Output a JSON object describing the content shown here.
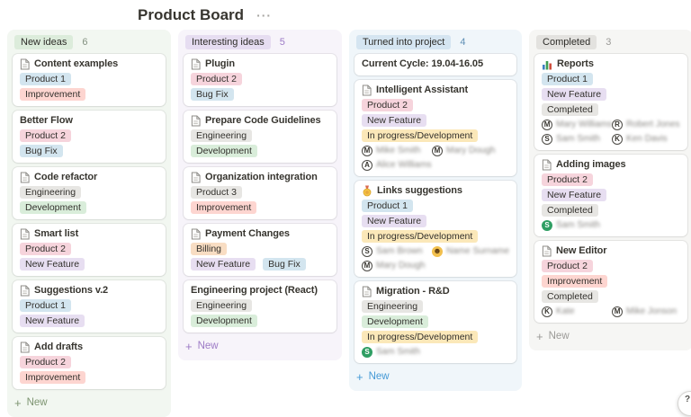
{
  "page": {
    "title": "Product Board",
    "menu_icon": "···",
    "help_icon": "?"
  },
  "tag_palette": {
    "blue": "#d3e5ef",
    "pink": "#f6d4dc",
    "red": "#fdd5d0",
    "gray": "#e7e6e3",
    "green": "#d9edda",
    "purple": "#e7def1",
    "yellow": "#fbe8b9",
    "orange": "#f8ddc3"
  },
  "columns": [
    {
      "id": "new-ideas",
      "label": "New ideas",
      "count": "6",
      "column_bg": "#f2f7f1",
      "pill_bg": "#dcecdb",
      "count_color": "#839180",
      "accent_color": "#7d9471",
      "new_label": "New",
      "cards": [
        {
          "icon": "doc",
          "title": "Content examples",
          "rows": [
            [
              {
                "type": "tag",
                "label": "Product 1",
                "color": "blue"
              }
            ],
            [
              {
                "type": "tag",
                "label": "Improvement",
                "color": "red"
              }
            ]
          ]
        },
        {
          "icon": null,
          "title": "Better Flow",
          "rows": [
            [
              {
                "type": "tag",
                "label": "Product 2",
                "color": "pink"
              }
            ],
            [
              {
                "type": "tag",
                "label": "Bug Fix",
                "color": "blue"
              }
            ]
          ]
        },
        {
          "icon": "doc",
          "title": "Code refactor",
          "rows": [
            [
              {
                "type": "tag",
                "label": "Engineering",
                "color": "gray"
              }
            ],
            [
              {
                "type": "tag",
                "label": "Development",
                "color": "green"
              }
            ]
          ]
        },
        {
          "icon": "doc",
          "title": "Smart list",
          "rows": [
            [
              {
                "type": "tag",
                "label": "Product 2",
                "color": "pink"
              }
            ],
            [
              {
                "type": "tag",
                "label": "New Feature",
                "color": "purple"
              }
            ]
          ]
        },
        {
          "icon": "doc",
          "title": "Suggestions v.2",
          "rows": [
            [
              {
                "type": "tag",
                "label": "Product 1",
                "color": "blue"
              }
            ],
            [
              {
                "type": "tag",
                "label": "New Feature",
                "color": "purple"
              }
            ]
          ]
        },
        {
          "icon": "doc",
          "title": "Add drafts",
          "rows": [
            [
              {
                "type": "tag",
                "label": "Product 2",
                "color": "pink"
              }
            ],
            [
              {
                "type": "tag",
                "label": "Improvement",
                "color": "red"
              }
            ]
          ]
        }
      ]
    },
    {
      "id": "interesting-ideas",
      "label": "Interesting ideas",
      "count": "5",
      "column_bg": "#f7f4fa",
      "pill_bg": "#e6ddf1",
      "count_color": "#9d7bc6",
      "accent_color": "#9d7bc6",
      "new_label": "New",
      "cards": [
        {
          "icon": "doc",
          "title": "Plugin",
          "rows": [
            [
              {
                "type": "tag",
                "label": "Product 2",
                "color": "pink"
              }
            ],
            [
              {
                "type": "tag",
                "label": "Bug Fix",
                "color": "blue"
              }
            ]
          ]
        },
        {
          "icon": "doc",
          "title": "Prepare Code Guidelines",
          "rows": [
            [
              {
                "type": "tag",
                "label": "Engineering",
                "color": "gray"
              }
            ],
            [
              {
                "type": "tag",
                "label": "Development",
                "color": "green"
              }
            ]
          ]
        },
        {
          "icon": "doc",
          "title": "Organization integration",
          "rows": [
            [
              {
                "type": "tag",
                "label": "Product 3",
                "color": "gray"
              }
            ],
            [
              {
                "type": "tag",
                "label": "Improvement",
                "color": "red"
              }
            ]
          ]
        },
        {
          "icon": "doc",
          "title": "Payment Changes",
          "rows": [
            [
              {
                "type": "tag",
                "label": "Billing",
                "color": "orange"
              }
            ],
            [
              {
                "type": "tag",
                "label": "New Feature",
                "color": "purple"
              },
              {
                "type": "tag",
                "label": "Bug Fix",
                "color": "blue"
              }
            ]
          ]
        },
        {
          "icon": null,
          "title": "Engineering project (React)",
          "rows": [
            [
              {
                "type": "tag",
                "label": "Engineering",
                "color": "gray"
              }
            ],
            [
              {
                "type": "tag",
                "label": "Development",
                "color": "green"
              }
            ]
          ]
        }
      ]
    },
    {
      "id": "turned-into-project",
      "label": "Turned into project",
      "count": "4",
      "column_bg": "#f0f6fa",
      "pill_bg": "#d5e5f1",
      "count_color": "#5f8fb5",
      "accent_color": "#4499d6",
      "new_label": "New",
      "cards": [
        {
          "icon": null,
          "title": "Current Cycle: 19.04-16.05",
          "rows": []
        },
        {
          "icon": "doc",
          "title": "Intelligent Assistant",
          "rows": [
            [
              {
                "type": "tag",
                "label": "Product 2",
                "color": "pink"
              }
            ],
            [
              {
                "type": "tag",
                "label": "New Feature",
                "color": "purple"
              }
            ],
            [
              {
                "type": "tag",
                "label": "In progress/Development",
                "color": "yellow"
              }
            ],
            [
              {
                "type": "person",
                "initial": "M",
                "avatar": "outline",
                "name": "Mike Smith"
              },
              {
                "type": "person",
                "initial": "M",
                "avatar": "outline",
                "name": "Mary Dough"
              }
            ],
            [
              {
                "type": "person",
                "initial": "A",
                "avatar": "outline",
                "name": "Alice Williams"
              }
            ]
          ]
        },
        {
          "icon": "medal",
          "title": "Links suggestions",
          "rows": [
            [
              {
                "type": "tag",
                "label": "Product 1",
                "color": "blue"
              }
            ],
            [
              {
                "type": "tag",
                "label": "New Feature",
                "color": "purple"
              }
            ],
            [
              {
                "type": "tag",
                "label": "In progress/Development",
                "color": "yellow"
              }
            ],
            [
              {
                "type": "person",
                "initial": "S",
                "avatar": "outline",
                "name": "Sam Brown"
              },
              {
                "type": "person",
                "initial": "",
                "avatar": "yellow",
                "name": "Name Surname"
              }
            ],
            [
              {
                "type": "person",
                "initial": "M",
                "avatar": "outline",
                "name": "Mary Dough"
              }
            ]
          ]
        },
        {
          "icon": "doc",
          "title": "Migration - R&D",
          "rows": [
            [
              {
                "type": "tag",
                "label": "Engineering",
                "color": "gray"
              }
            ],
            [
              {
                "type": "tag",
                "label": "Development",
                "color": "green"
              }
            ],
            [
              {
                "type": "tag",
                "label": "In progress/Development",
                "color": "yellow"
              }
            ],
            [
              {
                "type": "person",
                "initial": "S",
                "avatar": "green",
                "name": "Sam Smith"
              }
            ]
          ]
        }
      ]
    },
    {
      "id": "completed",
      "label": "Completed",
      "count": "3",
      "column_bg": "#f6f6f4",
      "pill_bg": "#e3e2df",
      "count_color": "#9b9a97",
      "accent_color": "#9b9a97",
      "new_label": "New",
      "cards": [
        {
          "icon": "chart",
          "title": "Reports",
          "rows": [
            [
              {
                "type": "tag",
                "label": "Product 1",
                "color": "blue"
              }
            ],
            [
              {
                "type": "tag",
                "label": "New Feature",
                "color": "purple"
              }
            ],
            [
              {
                "type": "tag",
                "label": "Completed",
                "color": "gray"
              }
            ],
            [
              {
                "type": "person",
                "initial": "M",
                "avatar": "outline",
                "name": "Mary Williams"
              },
              {
                "type": "person",
                "initial": "R",
                "avatar": "outline",
                "name": "Robert Jones"
              }
            ],
            [
              {
                "type": "person",
                "initial": "S",
                "avatar": "outline",
                "name": "Sam Smith"
              },
              {
                "type": "person",
                "initial": "K",
                "avatar": "outline",
                "name": "Ken Davis"
              }
            ]
          ]
        },
        {
          "icon": "doc",
          "title": "Adding images",
          "rows": [
            [
              {
                "type": "tag",
                "label": "Product 2",
                "color": "pink"
              }
            ],
            [
              {
                "type": "tag",
                "label": "New Feature",
                "color": "purple"
              }
            ],
            [
              {
                "type": "tag",
                "label": "Completed",
                "color": "gray"
              }
            ],
            [
              {
                "type": "person",
                "initial": "S",
                "avatar": "green",
                "name": "Sam Smith"
              }
            ]
          ]
        },
        {
          "icon": "doc",
          "title": "New Editor",
          "rows": [
            [
              {
                "type": "tag",
                "label": "Product 2",
                "color": "pink"
              }
            ],
            [
              {
                "type": "tag",
                "label": "Improvement",
                "color": "red"
              }
            ],
            [
              {
                "type": "tag",
                "label": "Completed",
                "color": "gray"
              }
            ],
            [
              {
                "type": "person",
                "initial": "K",
                "avatar": "outline",
                "name": "Kate"
              },
              {
                "type": "person",
                "initial": "M",
                "avatar": "outline",
                "name": "Mike Jonson"
              }
            ]
          ]
        }
      ]
    }
  ]
}
